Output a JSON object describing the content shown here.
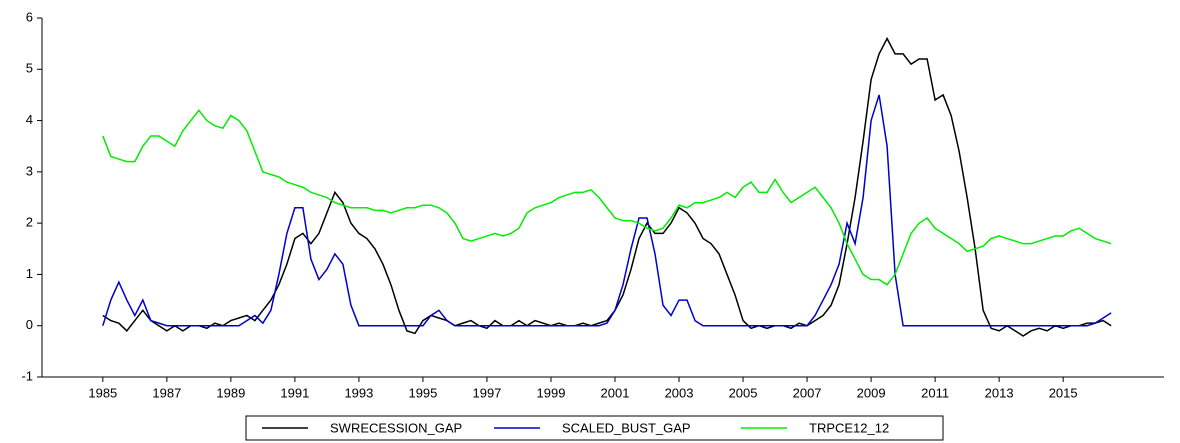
{
  "chart_data": {
    "type": "line",
    "x": [
      1985,
      1985.25,
      1985.5,
      1985.75,
      1986,
      1986.25,
      1986.5,
      1986.75,
      1987,
      1987.25,
      1987.5,
      1987.75,
      1988,
      1988.25,
      1988.5,
      1988.75,
      1989,
      1989.25,
      1989.5,
      1989.75,
      1990,
      1990.25,
      1990.5,
      1990.75,
      1991,
      1991.25,
      1991.5,
      1991.75,
      1992,
      1992.25,
      1992.5,
      1992.75,
      1993,
      1993.25,
      1993.5,
      1993.75,
      1994,
      1994.25,
      1994.5,
      1994.75,
      1995,
      1995.25,
      1995.5,
      1995.75,
      1996,
      1996.25,
      1996.5,
      1996.75,
      1997,
      1997.25,
      1997.5,
      1997.75,
      1998,
      1998.25,
      1998.5,
      1998.75,
      1999,
      1999.25,
      1999.5,
      1999.75,
      2000,
      2000.25,
      2000.5,
      2000.75,
      2001,
      2001.25,
      2001.5,
      2001.75,
      2002,
      2002.25,
      2002.5,
      2002.75,
      2003,
      2003.25,
      2003.5,
      2003.75,
      2004,
      2004.25,
      2004.5,
      2004.75,
      2005,
      2005.25,
      2005.5,
      2005.75,
      2006,
      2006.25,
      2006.5,
      2006.75,
      2007,
      2007.25,
      2007.5,
      2007.75,
      2008,
      2008.25,
      2008.5,
      2008.75,
      2009,
      2009.25,
      2009.5,
      2009.75,
      2010,
      2010.25,
      2010.5,
      2010.75,
      2011,
      2011.25,
      2011.5,
      2011.75,
      2012,
      2012.25,
      2012.5,
      2012.75,
      2013,
      2013.25,
      2013.5,
      2013.75,
      2014,
      2014.25,
      2014.5,
      2014.75,
      2015,
      2015.25,
      2015.5,
      2015.75,
      2016,
      2016.25,
      2016.5
    ],
    "series": [
      {
        "name": "SWRECESSION_GAP",
        "color": "#000000",
        "values": [
          0.2,
          0.1,
          0.05,
          -0.1,
          0.1,
          0.3,
          0.1,
          0,
          -0.1,
          0,
          -0.1,
          0,
          0,
          -0.05,
          0.05,
          0,
          0.1,
          0.15,
          0.2,
          0.1,
          0.3,
          0.5,
          0.8,
          1.2,
          1.7,
          1.8,
          1.6,
          1.8,
          2.2,
          2.6,
          2.4,
          2,
          1.8,
          1.7,
          1.5,
          1.2,
          0.8,
          0.3,
          -0.1,
          -0.15,
          0.1,
          0.2,
          0.15,
          0.1,
          0,
          0.05,
          0.1,
          0,
          -0.05,
          0.1,
          0,
          0,
          0.1,
          0,
          0.1,
          0.05,
          0,
          0.05,
          0,
          0,
          0.05,
          0,
          0.05,
          0.1,
          0.3,
          0.6,
          1.1,
          1.7,
          2,
          1.8,
          1.8,
          2,
          2.3,
          2.2,
          2,
          1.7,
          1.6,
          1.4,
          1,
          0.6,
          0.1,
          -0.05,
          0,
          -0.05,
          0,
          0,
          -0.05,
          0.05,
          0,
          0.1,
          0.2,
          0.4,
          0.8,
          1.6,
          2.5,
          3.6,
          4.8,
          5.3,
          5.6,
          5.3,
          5.3,
          5.1,
          5.2,
          5.2,
          4.4,
          4.5,
          4.1,
          3.4,
          2.5,
          1.5,
          0.3,
          -0.05,
          -0.1,
          0,
          -0.1,
          -0.2,
          -0.1,
          -0.05,
          -0.1,
          0,
          -0.05,
          0,
          0,
          0.05,
          0.05,
          0.1,
          0
        ]
      },
      {
        "name": "SCALED_BUST_GAP",
        "color": "#0000cc",
        "values": [
          0,
          0.5,
          0.85,
          0.5,
          0.2,
          0.5,
          0.1,
          0.05,
          0,
          0,
          0,
          0,
          0,
          0,
          0,
          0,
          0,
          0,
          0.1,
          0.2,
          0.05,
          0.3,
          1,
          1.8,
          2.3,
          2.3,
          1.3,
          0.9,
          1.1,
          1.4,
          1.2,
          0.4,
          0,
          0,
          0,
          0,
          0,
          0,
          0,
          0,
          0,
          0.2,
          0.3,
          0.1,
          0,
          0,
          0,
          0,
          0,
          0,
          0,
          0,
          0,
          0,
          0,
          0,
          0,
          0,
          0,
          0,
          0,
          0,
          0,
          0.05,
          0.3,
          0.8,
          1.5,
          2.1,
          2.1,
          1.4,
          0.4,
          0.2,
          0.5,
          0.5,
          0.1,
          0,
          0,
          0,
          0,
          0,
          0,
          0,
          0,
          0,
          0,
          0,
          0,
          0,
          0,
          0.2,
          0.5,
          0.8,
          1.2,
          2,
          1.6,
          2.5,
          4,
          4.5,
          3.5,
          1,
          0,
          0,
          0,
          0,
          0,
          0,
          0,
          0,
          0,
          0,
          0,
          0,
          0,
          0,
          0,
          0,
          0,
          0,
          0,
          0,
          0,
          0,
          0,
          0,
          0.05,
          0.15,
          0.25
        ]
      },
      {
        "name": "TRPCE12_12",
        "color": "#00ee00",
        "values": [
          3.7,
          3.3,
          3.25,
          3.2,
          3.2,
          3.5,
          3.7,
          3.7,
          3.6,
          3.5,
          3.8,
          4,
          4.2,
          4,
          3.9,
          3.85,
          4.1,
          4,
          3.8,
          3.4,
          3,
          2.95,
          2.9,
          2.8,
          2.75,
          2.7,
          2.6,
          2.55,
          2.5,
          2.4,
          2.35,
          2.3,
          2.3,
          2.3,
          2.25,
          2.25,
          2.2,
          2.25,
          2.3,
          2.3,
          2.35,
          2.35,
          2.3,
          2.2,
          2,
          1.7,
          1.65,
          1.7,
          1.75,
          1.8,
          1.75,
          1.8,
          1.9,
          2.2,
          2.3,
          2.35,
          2.4,
          2.5,
          2.55,
          2.6,
          2.6,
          2.65,
          2.5,
          2.3,
          2.1,
          2.05,
          2.05,
          2,
          1.9,
          1.85,
          1.9,
          2.1,
          2.35,
          2.3,
          2.4,
          2.4,
          2.45,
          2.5,
          2.6,
          2.5,
          2.7,
          2.8,
          2.6,
          2.6,
          2.85,
          2.6,
          2.4,
          2.5,
          2.6,
          2.7,
          2.5,
          2.3,
          2,
          1.6,
          1.3,
          1,
          0.9,
          0.9,
          0.8,
          1,
          1.4,
          1.8,
          2,
          2.1,
          1.9,
          1.8,
          1.7,
          1.6,
          1.45,
          1.5,
          1.55,
          1.7,
          1.75,
          1.7,
          1.65,
          1.6,
          1.6,
          1.65,
          1.7,
          1.75,
          1.75,
          1.85,
          1.9,
          1.8,
          1.7,
          1.65,
          1.6
        ]
      }
    ],
    "xlim": [
      1983.1,
      2018.15
    ],
    "xticks": [
      1985,
      1987,
      1989,
      1991,
      1993,
      1995,
      1997,
      1999,
      2001,
      2003,
      2005,
      2007,
      2009,
      2011,
      2013,
      2015
    ],
    "ylim": [
      -1,
      6
    ],
    "yticks": [
      -1,
      0,
      1,
      2,
      3,
      4,
      5,
      6
    ]
  }
}
